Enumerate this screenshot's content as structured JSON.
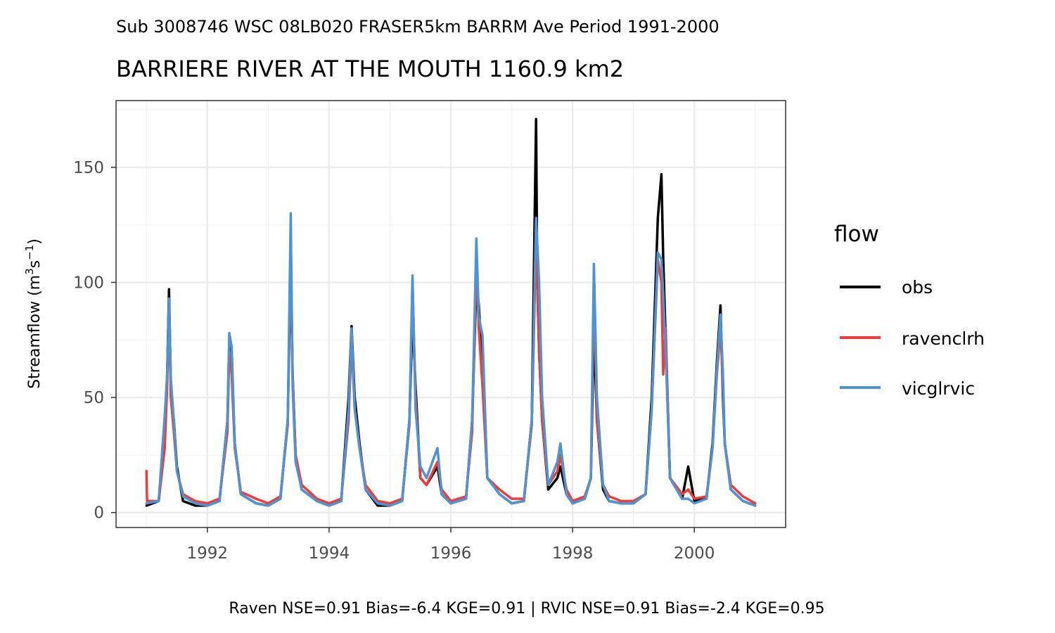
{
  "chart_data": {
    "type": "line",
    "subtitle": "Sub 3008746 WSC 08LB020 FRASER5km BARRM Ave Period 1991-2000",
    "title": "BARRIERE RIVER AT THE MOUTH 1160.9 km2",
    "ylabel_main": "Streamflow (m",
    "ylabel_sup1": "3",
    "ylabel_mid": "s",
    "ylabel_sup2": "−1",
    "ylabel_end": ")",
    "caption": "Raven NSE=0.91 Bias=-6.4 KGE=0.91 | RVIC NSE=0.91 Bias=-2.4 KGE=0.95",
    "legend_title": "flow",
    "legend_position": "right",
    "grid": true,
    "xlim": [
      1990.5,
      2001.5
    ],
    "ylim": [
      -6.5,
      179
    ],
    "x_ticks": [
      1992,
      1994,
      1996,
      1998,
      2000
    ],
    "x_tick_labels": [
      "1992",
      "1994",
      "1996",
      "1998",
      "2000"
    ],
    "y_ticks": [
      0,
      50,
      100,
      150
    ],
    "y_tick_labels": [
      "0",
      "50",
      "100",
      "150"
    ],
    "colors": {
      "obs": "#000000",
      "ravenclrh": "#f03b3b",
      "vicglrvic": "#4f93cf"
    },
    "series": [
      {
        "name": "obs",
        "x": [
          1991.0,
          1991.2,
          1991.3,
          1991.34,
          1991.37,
          1991.4,
          1991.42,
          1991.45,
          1991.5,
          1991.6,
          1991.8,
          1992.0,
          1992.2,
          1992.33,
          1992.36,
          1992.4,
          1992.45,
          1992.55,
          1992.8,
          1993.0,
          1993.2,
          1993.32,
          1993.37,
          1993.4,
          1993.45,
          1993.55,
          1993.8,
          1994.0,
          1994.2,
          1994.32,
          1994.37,
          1994.42,
          1994.5,
          1994.6,
          1994.8,
          1995.0,
          1995.2,
          1995.32,
          1995.37,
          1995.42,
          1995.5,
          1995.6,
          1995.78,
          1995.85,
          1996.0,
          1996.25,
          1996.35,
          1996.42,
          1996.46,
          1996.52,
          1996.6,
          1996.8,
          1997.0,
          1997.2,
          1997.33,
          1997.4,
          1997.42,
          1997.45,
          1997.5,
          1997.6,
          1997.75,
          1997.8,
          1997.9,
          1998.0,
          1998.2,
          1998.3,
          1998.35,
          1998.4,
          1998.5,
          1998.6,
          1998.8,
          1999.0,
          1999.2,
          1999.3,
          1999.4,
          1999.46,
          1999.49,
          1999.53,
          1999.6,
          1999.8,
          1999.9,
          2000.0,
          2000.2,
          2000.3,
          2000.37,
          2000.43,
          2000.47,
          2000.5,
          2000.6,
          2000.8,
          2001.0
        ],
        "values": [
          3,
          5,
          30,
          60,
          97,
          55,
          45,
          40,
          20,
          5,
          3,
          3,
          5,
          40,
          75,
          65,
          30,
          8,
          4,
          3,
          6,
          40,
          110,
          60,
          25,
          10,
          5,
          3,
          5,
          50,
          81,
          50,
          30,
          10,
          3,
          3,
          5,
          40,
          85,
          55,
          15,
          12,
          20,
          8,
          4,
          6,
          40,
          100,
          90,
          60,
          15,
          8,
          4,
          5,
          40,
          171,
          100,
          70,
          40,
          10,
          15,
          20,
          8,
          4,
          6,
          15,
          80,
          40,
          10,
          5,
          4,
          4,
          8,
          50,
          128,
          147,
          110,
          75,
          15,
          6,
          20,
          5,
          6,
          30,
          65,
          90,
          50,
          30,
          10,
          5,
          3
        ]
      },
      {
        "name": "ravenclrh",
        "x": [
          1991.0,
          1991.01,
          1991.2,
          1991.3,
          1991.34,
          1991.37,
          1991.4,
          1991.45,
          1991.5,
          1991.6,
          1991.8,
          1992.0,
          1992.2,
          1992.33,
          1992.36,
          1992.4,
          1992.45,
          1992.55,
          1992.8,
          1993.0,
          1993.2,
          1993.32,
          1993.37,
          1993.4,
          1993.45,
          1993.55,
          1993.8,
          1994.0,
          1994.2,
          1994.32,
          1994.37,
          1994.42,
          1994.5,
          1994.6,
          1994.8,
          1995.0,
          1995.2,
          1995.32,
          1995.37,
          1995.42,
          1995.5,
          1995.6,
          1995.78,
          1995.85,
          1996.0,
          1996.25,
          1996.35,
          1996.42,
          1996.46,
          1996.52,
          1996.6,
          1996.8,
          1997.0,
          1997.2,
          1997.33,
          1997.4,
          1997.45,
          1997.5,
          1997.6,
          1997.75,
          1997.8,
          1997.9,
          1998.0,
          1998.2,
          1998.3,
          1998.35,
          1998.4,
          1998.5,
          1998.6,
          1998.8,
          1999.0,
          1999.2,
          1999.3,
          1999.4,
          1999.46,
          1999.49,
          1999.53,
          1999.6,
          1999.8,
          1999.9,
          2000.0,
          2000.2,
          2000.3,
          2000.37,
          2000.43,
          2000.47,
          2000.5,
          2000.6,
          2000.8,
          2001.0
        ],
        "values": [
          18,
          5,
          5,
          28,
          55,
          90,
          50,
          35,
          18,
          8,
          5,
          4,
          6,
          35,
          70,
          60,
          28,
          9,
          6,
          4,
          7,
          38,
          120,
          60,
          25,
          12,
          6,
          4,
          6,
          40,
          75,
          45,
          28,
          12,
          5,
          4,
          6,
          38,
          100,
          50,
          15,
          12,
          22,
          10,
          5,
          7,
          35,
          110,
          80,
          55,
          15,
          10,
          6,
          6,
          38,
          120,
          70,
          40,
          12,
          18,
          25,
          10,
          5,
          7,
          15,
          100,
          40,
          12,
          7,
          5,
          5,
          8,
          45,
          110,
          100,
          60,
          80,
          15,
          8,
          10,
          6,
          7,
          28,
          60,
          80,
          55,
          30,
          12,
          7,
          4
        ]
      },
      {
        "name": "vicglrvic",
        "x": [
          1991.0,
          1991.2,
          1991.3,
          1991.34,
          1991.37,
          1991.4,
          1991.45,
          1991.5,
          1991.6,
          1991.8,
          1992.0,
          1992.2,
          1992.33,
          1992.36,
          1992.4,
          1992.45,
          1992.55,
          1992.8,
          1993.0,
          1993.2,
          1993.32,
          1993.37,
          1993.4,
          1993.45,
          1993.55,
          1993.8,
          1994.0,
          1994.2,
          1994.32,
          1994.37,
          1994.42,
          1994.5,
          1994.6,
          1994.8,
          1995.0,
          1995.2,
          1995.32,
          1995.37,
          1995.42,
          1995.5,
          1995.6,
          1995.78,
          1995.85,
          1996.0,
          1996.25,
          1996.35,
          1996.42,
          1996.46,
          1996.52,
          1996.6,
          1996.8,
          1997.0,
          1997.2,
          1997.33,
          1997.4,
          1997.45,
          1997.5,
          1997.6,
          1997.75,
          1997.8,
          1997.9,
          1998.0,
          1998.2,
          1998.3,
          1998.35,
          1998.4,
          1998.5,
          1998.6,
          1998.8,
          1999.0,
          1999.2,
          1999.3,
          1999.4,
          1999.46,
          1999.49,
          1999.53,
          1999.6,
          1999.8,
          1999.9,
          2000.0,
          2000.2,
          2000.3,
          2000.37,
          2000.43,
          2000.47,
          2000.5,
          2000.6,
          2000.8,
          2001.0
        ],
        "values": [
          4,
          5,
          42,
          60,
          93,
          58,
          40,
          18,
          7,
          4,
          3,
          5,
          40,
          78,
          72,
          30,
          8,
          4,
          3,
          6,
          40,
          130,
          55,
          22,
          10,
          5,
          3,
          5,
          45,
          80,
          45,
          28,
          10,
          4,
          3,
          5,
          40,
          103,
          45,
          20,
          15,
          28,
          8,
          4,
          6,
          40,
          119,
          85,
          77,
          15,
          8,
          4,
          5,
          40,
          128,
          100,
          50,
          12,
          22,
          30,
          8,
          4,
          6,
          15,
          108,
          50,
          12,
          5,
          4,
          4,
          8,
          45,
          113,
          110,
          95,
          70,
          15,
          6,
          6,
          4,
          6,
          28,
          62,
          86,
          60,
          30,
          10,
          5,
          3
        ]
      }
    ]
  }
}
